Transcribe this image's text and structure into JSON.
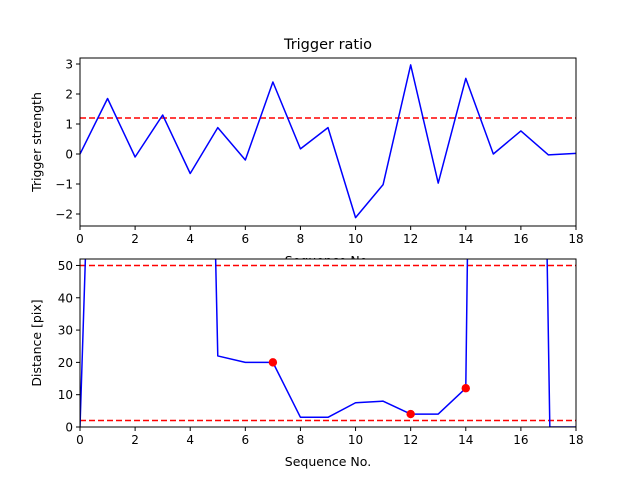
{
  "chart_data": [
    {
      "type": "line",
      "title": "Trigger ratio",
      "xlabel": "Sequence No.",
      "ylabel": "Trigger strength",
      "xlim": [
        0,
        18
      ],
      "ylim": [
        -2.4,
        3.2
      ],
      "xticks": [
        0,
        2,
        4,
        6,
        8,
        10,
        12,
        14,
        16,
        18
      ],
      "yticks": [
        -2,
        -1,
        0,
        1,
        2,
        3
      ],
      "grid": false,
      "series": [
        {
          "color": "#0000ff",
          "x": [
            0,
            1,
            2,
            3,
            4,
            5,
            6,
            7,
            8,
            9,
            10,
            11,
            12,
            13,
            14,
            15,
            16,
            17,
            18
          ],
          "y": [
            0.0,
            1.85,
            -0.1,
            1.3,
            -0.65,
            0.88,
            -0.2,
            2.4,
            0.17,
            0.88,
            -2.12,
            -1.02,
            2.97,
            -0.97,
            2.52,
            0.0,
            0.77,
            -0.03,
            0.02
          ]
        }
      ],
      "hlines": [
        {
          "y": 1.2,
          "color": "#ff0000",
          "style": "dashed"
        }
      ]
    },
    {
      "type": "line",
      "title": "",
      "xlabel": "Sequence No.",
      "ylabel": "Distance [pix]",
      "xlim": [
        0,
        18
      ],
      "ylim": [
        0,
        52
      ],
      "xticks": [
        0,
        2,
        4,
        6,
        8,
        10,
        12,
        14,
        16,
        18
      ],
      "yticks": [
        0,
        10,
        20,
        30,
        40,
        50
      ],
      "grid": false,
      "series": [
        {
          "color": "#0000ff",
          "x": [
            0,
            0.3,
            4.85,
            5,
            6,
            7,
            8,
            9,
            10,
            11,
            12,
            13,
            14,
            14.1,
            16.9,
            17.05,
            18
          ],
          "y": [
            0,
            80,
            80,
            22,
            20,
            20,
            3,
            3,
            7.5,
            8,
            4,
            4,
            12,
            80,
            80,
            0,
            0
          ]
        }
      ],
      "markers": {
        "color": "#ff0000",
        "x": [
          7,
          12,
          14
        ],
        "y": [
          20,
          4,
          12
        ]
      },
      "hlines": [
        {
          "y": 50,
          "color": "#ff0000",
          "style": "dashed"
        },
        {
          "y": 2,
          "color": "#ff0000",
          "style": "dashed"
        }
      ]
    }
  ]
}
